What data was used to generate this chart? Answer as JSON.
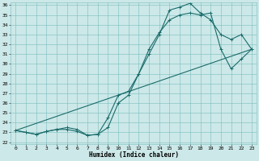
{
  "xlabel": "Humidex (Indice chaleur)",
  "xlim": [
    -0.5,
    23.5
  ],
  "ylim": [
    22,
    36
  ],
  "yticks": [
    22,
    23,
    24,
    25,
    26,
    27,
    28,
    29,
    30,
    31,
    32,
    33,
    34,
    35,
    36
  ],
  "xticks": [
    0,
    1,
    2,
    3,
    4,
    5,
    6,
    7,
    8,
    9,
    10,
    11,
    12,
    13,
    14,
    15,
    16,
    17,
    18,
    19,
    20,
    21,
    22,
    23
  ],
  "bg_color": "#cce8e8",
  "grid_color": "#7bbcbc",
  "line_color": "#1a6b6b",
  "line1_x": [
    0,
    1,
    2,
    3,
    4,
    5,
    6,
    7,
    8,
    9,
    10,
    11,
    12,
    13,
    14,
    15,
    16,
    17,
    18,
    19,
    20,
    21,
    22,
    23
  ],
  "line1_y": [
    23.2,
    23.0,
    22.8,
    23.1,
    23.3,
    23.3,
    23.1,
    22.7,
    22.8,
    23.5,
    26.0,
    26.8,
    29.0,
    31.0,
    33.0,
    35.5,
    35.8,
    36.2,
    35.2,
    34.5,
    33.0,
    32.5,
    33.0,
    31.5
  ],
  "line2_x": [
    0,
    1,
    2,
    3,
    4,
    5,
    6,
    7,
    8,
    9,
    10,
    11,
    12,
    13,
    14,
    15,
    16,
    17,
    18,
    19,
    20,
    21,
    22,
    23
  ],
  "line2_y": [
    23.2,
    23.0,
    22.8,
    23.1,
    23.3,
    23.5,
    23.3,
    22.7,
    22.8,
    24.5,
    26.8,
    27.2,
    29.0,
    31.5,
    33.2,
    34.5,
    35.0,
    35.2,
    35.0,
    35.2,
    31.5,
    29.5,
    30.5,
    31.5
  ],
  "line3_x": [
    0,
    23
  ],
  "line3_y": [
    23.2,
    31.5
  ]
}
